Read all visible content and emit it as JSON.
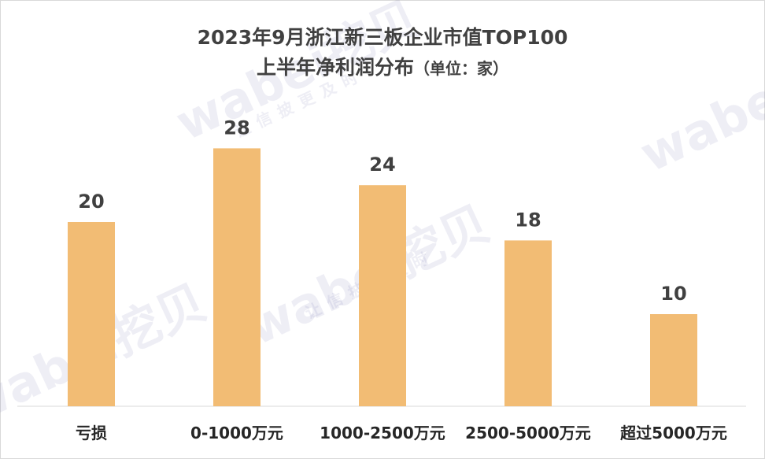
{
  "chart_data": {
    "type": "bar",
    "title_line1": "2023年9月浙江新三板企业市值TOP100",
    "title_line2_main": "上半年净利润分布",
    "title_line2_unit": "（单位：家）",
    "categories": [
      "亏损",
      "0-1000万元",
      "1000-2500万元",
      "2500-5000万元",
      "超过5000万元"
    ],
    "values": [
      20,
      28,
      24,
      18,
      10
    ],
    "ylim": [
      0,
      30
    ],
    "bar_color": "#F2BC74",
    "grid": false,
    "legend": false
  },
  "watermark": {
    "main": "wabei挖贝",
    "sub": "让信披更及时"
  }
}
